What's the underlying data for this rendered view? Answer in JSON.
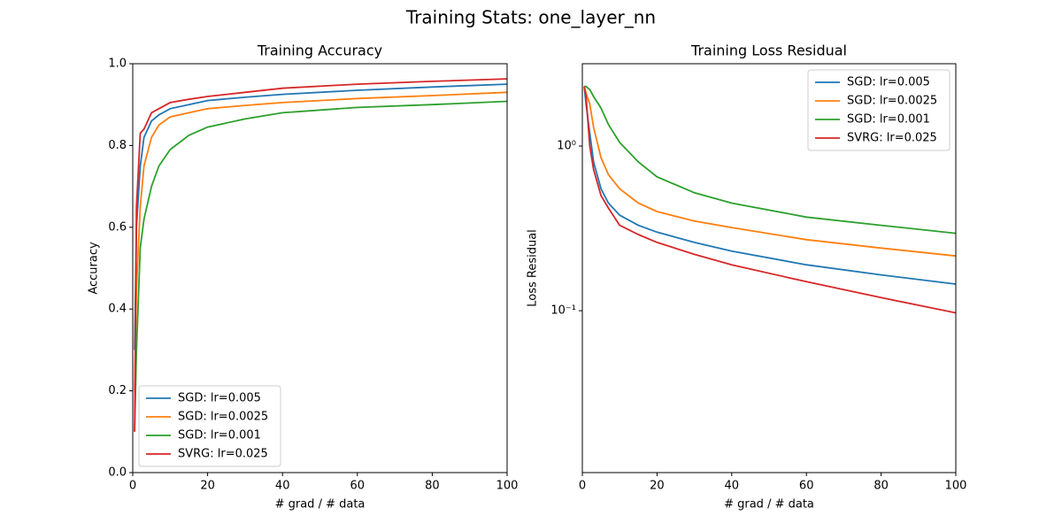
{
  "title": "Training Stats: one_layer_nn",
  "chart_data": [
    {
      "type": "line",
      "title": "Training Accuracy",
      "xlabel": "# grad / # data",
      "ylabel": "Accuracy",
      "x": [
        0.5,
        1,
        2,
        3,
        5,
        7,
        10,
        15,
        20,
        30,
        40,
        60,
        80,
        100
      ],
      "series": [
        {
          "name": "SGD: lr=0.005",
          "color": "#1f77b4",
          "values": [
            0.3,
            0.6,
            0.75,
            0.82,
            0.86,
            0.875,
            0.89,
            0.9,
            0.91,
            0.918,
            0.925,
            0.935,
            0.943,
            0.95
          ]
        },
        {
          "name": "SGD: lr=0.0025",
          "color": "#ff7f0e",
          "values": [
            0.2,
            0.45,
            0.65,
            0.75,
            0.82,
            0.85,
            0.87,
            0.88,
            0.89,
            0.898,
            0.905,
            0.915,
            0.922,
            0.93
          ]
        },
        {
          "name": "SGD: lr=0.001",
          "color": "#2ca02c",
          "values": [
            0.1,
            0.3,
            0.55,
            0.62,
            0.7,
            0.75,
            0.79,
            0.825,
            0.845,
            0.865,
            0.88,
            0.893,
            0.9,
            0.908
          ]
        },
        {
          "name": "SVRG: lr=0.025",
          "color": "#d62728",
          "values": [
            0.1,
            0.65,
            0.83,
            0.84,
            0.88,
            0.89,
            0.905,
            0.913,
            0.92,
            0.93,
            0.94,
            0.95,
            0.957,
            0.963
          ]
        }
      ],
      "xlim": [
        0,
        100
      ],
      "xticks": [
        0,
        20,
        40,
        60,
        80,
        100
      ],
      "ylim": [
        0,
        1
      ],
      "yticks": [
        {
          "value": 0,
          "label": "0.0"
        },
        0.2,
        0.4,
        0.6,
        0.8,
        {
          "value": 1,
          "label": "1.0"
        }
      ],
      "legend": "lower left"
    },
    {
      "type": "line",
      "title": "Training Loss Residual",
      "xlabel": "# grad / # data",
      "ylabel": "Loss Residual",
      "x": [
        0.5,
        1,
        2,
        3,
        5,
        7,
        10,
        15,
        20,
        30,
        40,
        60,
        80,
        100
      ],
      "series": [
        {
          "name": "SGD: lr=0.005",
          "color": "#1f77b4",
          "values": [
            2.3,
            1.8,
            1.2,
            0.8,
            0.55,
            0.45,
            0.38,
            0.33,
            0.3,
            0.26,
            0.23,
            0.19,
            0.165,
            0.145
          ]
        },
        {
          "name": "SGD: lr=0.0025",
          "color": "#ff7f0e",
          "values": [
            2.3,
            2.1,
            1.8,
            1.3,
            0.85,
            0.67,
            0.55,
            0.45,
            0.4,
            0.35,
            0.32,
            0.27,
            0.24,
            0.215
          ]
        },
        {
          "name": "SGD: lr=0.001",
          "color": "#2ca02c",
          "values": [
            2.3,
            2.3,
            2.2,
            2.0,
            1.7,
            1.35,
            1.05,
            0.8,
            0.65,
            0.52,
            0.45,
            0.37,
            0.33,
            0.295
          ]
        },
        {
          "name": "SVRG: lr=0.025",
          "color": "#d62728",
          "values": [
            2.3,
            2.0,
            1.0,
            0.72,
            0.5,
            0.42,
            0.33,
            0.29,
            0.26,
            0.22,
            0.19,
            0.15,
            0.12,
            0.097
          ]
        }
      ],
      "xlim": [
        0,
        100
      ],
      "xticks": [
        0,
        20,
        40,
        60,
        80,
        100
      ],
      "ylim": [
        0.0104,
        3.16
      ],
      "yscale": "log",
      "yticks": [
        {
          "value": 1,
          "label": "10⁰"
        },
        {
          "value": 0.1,
          "label": "10⁻¹"
        }
      ],
      "legend": "upper right"
    }
  ]
}
